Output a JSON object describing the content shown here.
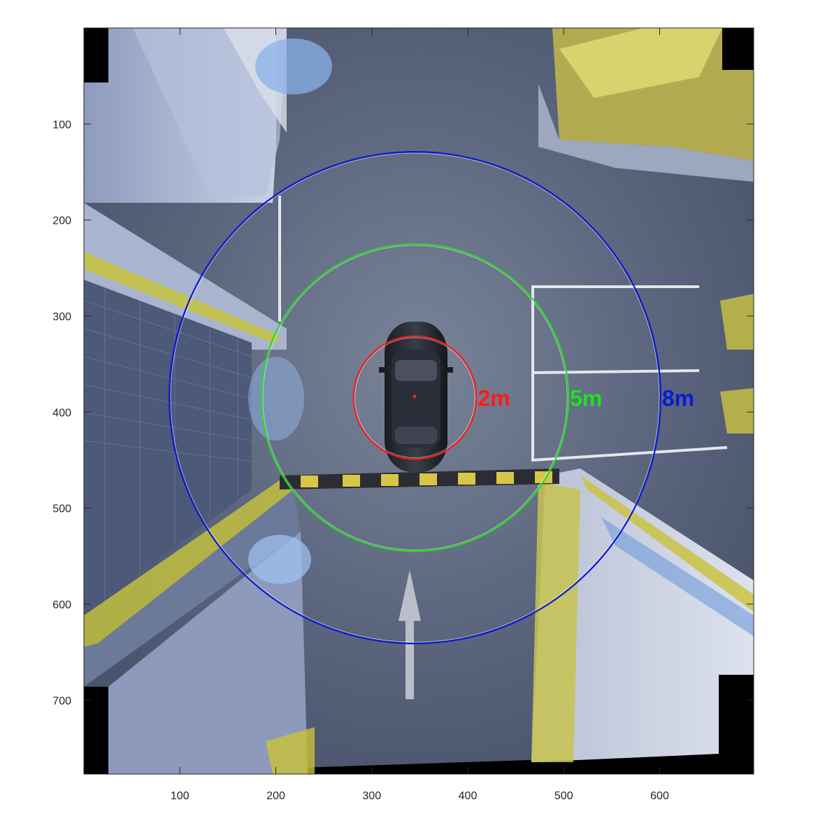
{
  "figure": {
    "xaxis": {
      "ticks": [
        100,
        200,
        300,
        400,
        500,
        600
      ],
      "range": [
        0,
        698
      ]
    },
    "yaxis": {
      "ticks": [
        100,
        200,
        300,
        400,
        500,
        600,
        700
      ],
      "range": [
        0,
        777
      ],
      "reversed": true
    }
  },
  "scene": {
    "description_colors": {
      "road": "#5c6680",
      "wall": "#9aa5c0",
      "yellow": "#c9c23a",
      "parking_line": "#e6e6ea"
    },
    "vehicle_center": {
      "x": 345,
      "y": 385
    },
    "rings": [
      {
        "label": "2m",
        "color": "#ff1a1a",
        "radius": 64
      },
      {
        "label": "5m",
        "color": "#22e022",
        "radius": 160
      },
      {
        "label": "8m",
        "color": "#0a1ad6",
        "radius": 256
      }
    ]
  }
}
